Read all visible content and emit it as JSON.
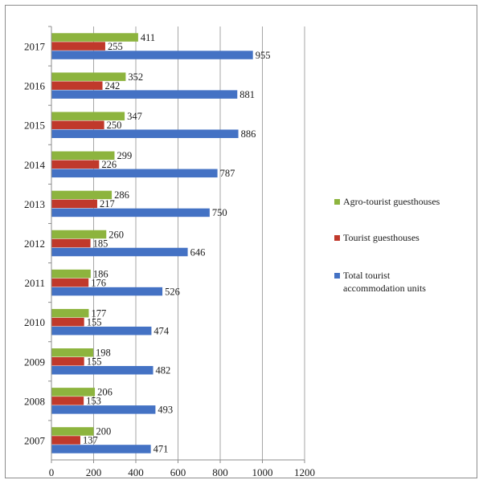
{
  "chart_data": {
    "type": "bar",
    "orientation": "horizontal",
    "categories": [
      "2007",
      "2008",
      "2009",
      "2010",
      "2011",
      "2012",
      "2013",
      "2014",
      "2015",
      "2016",
      "2017"
    ],
    "series": [
      {
        "name": "Agro-tourist guesthouses",
        "color": "#8db43e",
        "values": [
          200,
          206,
          198,
          177,
          186,
          260,
          286,
          299,
          347,
          352,
          411
        ]
      },
      {
        "name": "Tourist guesthouses",
        "color": "#c0392b",
        "values": [
          137,
          153,
          155,
          155,
          176,
          185,
          217,
          226,
          250,
          242,
          255
        ]
      },
      {
        "name": "Total tourist accommodation units",
        "color": "#4472c4",
        "values": [
          471,
          493,
          482,
          474,
          526,
          646,
          750,
          787,
          886,
          881,
          955
        ]
      }
    ],
    "xlim": [
      0,
      1200
    ],
    "xticks": [
      0,
      200,
      400,
      600,
      800,
      1000,
      1200
    ],
    "grid": "vertical",
    "legend_position": "right",
    "legend_lines": [
      [
        "Agro-tourist guesthouses"
      ],
      [
        "Tourist guesthouses"
      ],
      [
        "Total tourist",
        "accommodation units"
      ]
    ],
    "title": "",
    "xlabel": "",
    "ylabel": ""
  }
}
